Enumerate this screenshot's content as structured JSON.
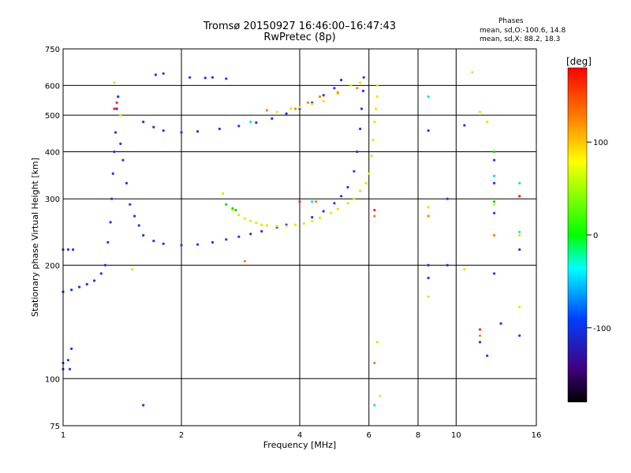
{
  "header": {
    "title_line1": "Tromsø 20150927 16:46:00–16:47:43",
    "title_line2": "RwPretec (8p)"
  },
  "stats": {
    "heading": "Phases",
    "o_mode": "mean, sd,O:-100.6, 14.8",
    "x_mode": "mean, sd,X:  88.2, 18.3"
  },
  "colorbar": {
    "label": "[deg]",
    "range": [
      -180,
      180
    ],
    "ticks": [
      100,
      0,
      -100
    ],
    "tick_labels": [
      "100",
      "0",
      "-100"
    ],
    "colors": [
      "#ff0000",
      "#ff8000",
      "#ffff00",
      "#00ff00",
      "#00ffff",
      "#0040ff",
      "#400080",
      "#000000"
    ]
  },
  "chart_data": {
    "type": "scatter",
    "title": "Tromsø 20150927 16:46:00–16:47:43",
    "subtitle": "RwPretec (8p)",
    "xlabel": "Frequency [MHz]",
    "ylabel": "Stationary phase Virtual Height [km]",
    "xscale": "log",
    "yscale": "log",
    "xlim": [
      1,
      16
    ],
    "ylim": [
      75,
      750
    ],
    "x_ticks": [
      1,
      2,
      4,
      6,
      8,
      10,
      16
    ],
    "x_tick_labels": [
      "1",
      "2",
      "4",
      "6",
      "8",
      "10",
      "16"
    ],
    "y_ticks": [
      75,
      100,
      200,
      300,
      400,
      500,
      600,
      750
    ],
    "y_tick_labels": [
      "75",
      "100",
      "200",
      "300",
      "400",
      "500",
      "600",
      "750"
    ],
    "grid": true,
    "color_encoding": "phase [deg]",
    "series": [
      {
        "mode": "O",
        "phase_mean": -100.6,
        "color": "#2030ff",
        "points": [
          [
            1.0,
            220
          ],
          [
            1.03,
            220
          ],
          [
            1.06,
            220
          ],
          [
            1.0,
            170
          ],
          [
            1.05,
            172
          ],
          [
            1.1,
            175
          ],
          [
            1.15,
            178
          ],
          [
            1.2,
            182
          ],
          [
            1.25,
            190
          ],
          [
            1.28,
            200
          ],
          [
            1.0,
            110
          ],
          [
            1.03,
            112
          ],
          [
            1.05,
            120
          ],
          [
            1.0,
            106
          ],
          [
            1.04,
            106
          ],
          [
            1.3,
            230
          ],
          [
            1.32,
            260
          ],
          [
            1.33,
            300
          ],
          [
            1.34,
            350
          ],
          [
            1.35,
            400
          ],
          [
            1.36,
            450
          ],
          [
            1.37,
            520
          ],
          [
            1.38,
            560
          ],
          [
            1.4,
            420
          ],
          [
            1.42,
            380
          ],
          [
            1.45,
            330
          ],
          [
            1.48,
            290
          ],
          [
            1.52,
            270
          ],
          [
            1.56,
            255
          ],
          [
            1.6,
            240
          ],
          [
            1.7,
            232
          ],
          [
            1.8,
            228
          ],
          [
            2.0,
            226
          ],
          [
            2.2,
            227
          ],
          [
            2.4,
            230
          ],
          [
            2.6,
            234
          ],
          [
            2.8,
            238
          ],
          [
            3.0,
            242
          ],
          [
            3.2,
            246
          ],
          [
            3.5,
            252
          ],
          [
            3.7,
            256
          ],
          [
            4.3,
            268
          ],
          [
            4.6,
            278
          ],
          [
            4.9,
            292
          ],
          [
            5.1,
            305
          ],
          [
            5.3,
            322
          ],
          [
            5.5,
            355
          ],
          [
            5.6,
            400
          ],
          [
            5.7,
            460
          ],
          [
            5.75,
            520
          ],
          [
            5.8,
            580
          ],
          [
            5.82,
            630
          ],
          [
            1.6,
            480
          ],
          [
            1.7,
            465
          ],
          [
            1.8,
            455
          ],
          [
            2.0,
            450
          ],
          [
            2.2,
            453
          ],
          [
            2.5,
            460
          ],
          [
            2.8,
            468
          ],
          [
            3.1,
            478
          ],
          [
            3.4,
            490
          ],
          [
            3.7,
            505
          ],
          [
            4.0,
            520
          ],
          [
            4.3,
            540
          ],
          [
            4.6,
            565
          ],
          [
            4.9,
            590
          ],
          [
            5.1,
            620
          ],
          [
            1.72,
            640
          ],
          [
            1.8,
            645
          ],
          [
            2.1,
            630
          ],
          [
            2.3,
            628
          ],
          [
            2.4,
            630
          ],
          [
            2.6,
            625
          ],
          [
            1.6,
            85
          ],
          [
            8.5,
            200
          ],
          [
            8.5,
            185
          ],
          [
            8.5,
            455
          ],
          [
            9.5,
            300
          ],
          [
            9.5,
            200
          ],
          [
            12.5,
            190
          ],
          [
            12.5,
            380
          ],
          [
            12.5,
            330
          ],
          [
            12.5,
            275
          ],
          [
            14.5,
            220
          ],
          [
            14.5,
            130
          ],
          [
            13.0,
            140
          ],
          [
            10.5,
            470
          ],
          [
            11.5,
            125
          ],
          [
            12.0,
            115
          ]
        ]
      },
      {
        "mode": "X",
        "phase_mean": 88.2,
        "color": "#e6e600",
        "points": [
          [
            2.55,
            310
          ],
          [
            2.6,
            290
          ],
          [
            2.7,
            280
          ],
          [
            2.8,
            272
          ],
          [
            2.9,
            266
          ],
          [
            3.0,
            262
          ],
          [
            3.1,
            259
          ],
          [
            3.2,
            256
          ],
          [
            3.3,
            255
          ],
          [
            3.5,
            254
          ],
          [
            3.7,
            254
          ],
          [
            3.9,
            256
          ],
          [
            4.1,
            258
          ],
          [
            4.3,
            262
          ],
          [
            4.5,
            267
          ],
          [
            4.8,
            275
          ],
          [
            5.0,
            282
          ],
          [
            5.3,
            292
          ],
          [
            5.5,
            300
          ],
          [
            5.7,
            315
          ],
          [
            5.9,
            330
          ],
          [
            6.0,
            350
          ],
          [
            6.1,
            390
          ],
          [
            6.15,
            430
          ],
          [
            6.2,
            480
          ],
          [
            6.25,
            520
          ],
          [
            6.3,
            560
          ],
          [
            3.5,
            510
          ],
          [
            3.8,
            520
          ],
          [
            4.0,
            525
          ],
          [
            4.3,
            535
          ],
          [
            4.6,
            545
          ],
          [
            5.0,
            570
          ],
          [
            5.4,
            600
          ],
          [
            5.7,
            610
          ],
          [
            1.5,
            195
          ],
          [
            1.4,
            500
          ],
          [
            1.35,
            610
          ],
          [
            6.3,
            125
          ],
          [
            6.4,
            90
          ],
          [
            6.3,
            600
          ],
          [
            8.5,
            285
          ],
          [
            8.5,
            165
          ],
          [
            10.5,
            195
          ],
          [
            11.0,
            650
          ],
          [
            11.5,
            510
          ],
          [
            12.0,
            480
          ],
          [
            12.5,
            290
          ],
          [
            14.5,
            240
          ],
          [
            14.5,
            155
          ]
        ]
      },
      {
        "mode": "other",
        "color": "#ff8000",
        "points": [
          [
            3.3,
            515
          ],
          [
            3.9,
            520
          ],
          [
            4.2,
            540
          ],
          [
            4.5,
            560
          ],
          [
            5.0,
            575
          ],
          [
            5.6,
            590
          ],
          [
            4.4,
            295
          ],
          [
            2.9,
            205
          ],
          [
            6.2,
            110
          ],
          [
            6.2,
            270
          ],
          [
            8.5,
            270
          ],
          [
            12.5,
            240
          ],
          [
            14.5,
            305
          ],
          [
            11.5,
            130
          ]
        ]
      },
      {
        "mode": "other",
        "color": "#00e0ff",
        "points": [
          [
            3.0,
            480
          ],
          [
            4.3,
            295
          ],
          [
            6.2,
            85
          ],
          [
            8.5,
            560
          ],
          [
            12.5,
            345
          ],
          [
            14.5,
            330
          ],
          [
            14.5,
            245
          ]
        ]
      },
      {
        "mode": "other",
        "color": "#00dd00",
        "points": [
          [
            2.6,
            290
          ],
          [
            2.7,
            283
          ],
          [
            2.75,
            280
          ],
          [
            12.5,
            400
          ],
          [
            12.5,
            295
          ]
        ]
      },
      {
        "mode": "other",
        "color": "#ff2020",
        "points": [
          [
            1.35,
            520
          ],
          [
            1.37,
            540
          ],
          [
            4.0,
            295
          ],
          [
            6.2,
            280
          ],
          [
            11.5,
            135
          ],
          [
            14.5,
            305
          ]
        ]
      }
    ]
  }
}
